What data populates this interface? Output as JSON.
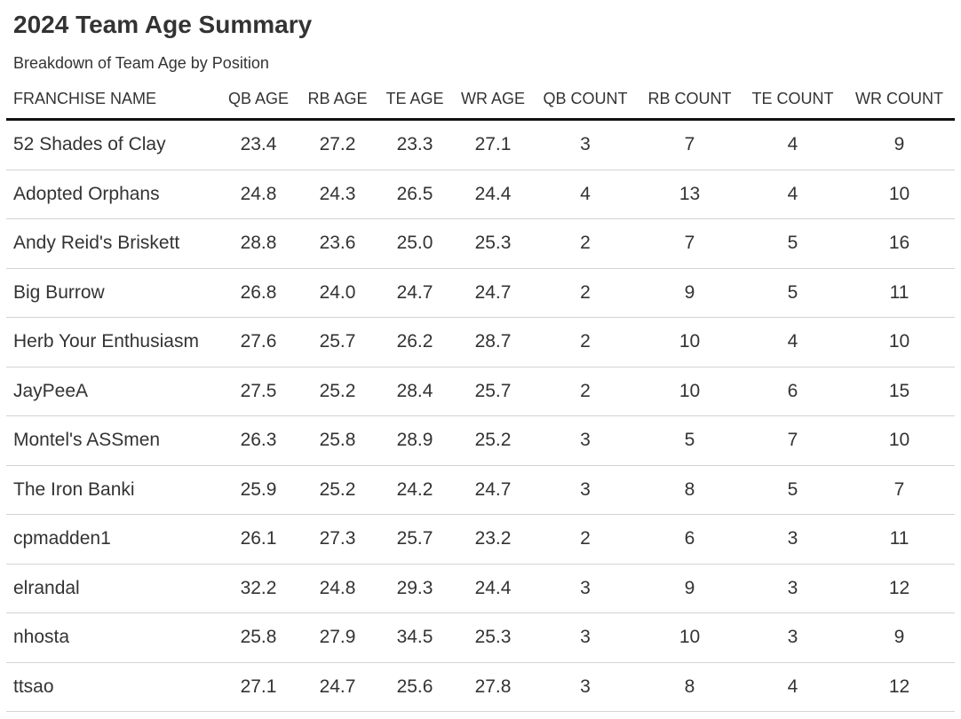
{
  "chart_data": {
    "type": "table",
    "title": "2024 Team Age Summary",
    "subtitle": "Breakdown of Team Age by Position",
    "columns": [
      "FRANCHISE NAME",
      "QB AGE",
      "RB AGE",
      "TE AGE",
      "WR AGE",
      "QB COUNT",
      "RB COUNT",
      "TE COUNT",
      "WR COUNT"
    ],
    "rows": [
      [
        "52 Shades of Clay",
        "23.4",
        "27.2",
        "23.3",
        "27.1",
        "3",
        "7",
        "4",
        "9"
      ],
      [
        "Adopted Orphans",
        "24.8",
        "24.3",
        "26.5",
        "24.4",
        "4",
        "13",
        "4",
        "10"
      ],
      [
        "Andy Reid's Briskett",
        "28.8",
        "23.6",
        "25.0",
        "25.3",
        "2",
        "7",
        "5",
        "16"
      ],
      [
        "Big Burrow",
        "26.8",
        "24.0",
        "24.7",
        "24.7",
        "2",
        "9",
        "5",
        "11"
      ],
      [
        "Herb Your Enthusiasm",
        "27.6",
        "25.7",
        "26.2",
        "28.7",
        "2",
        "10",
        "4",
        "10"
      ],
      [
        "JayPeeA",
        "27.5",
        "25.2",
        "28.4",
        "25.7",
        "2",
        "10",
        "6",
        "15"
      ],
      [
        "Montel's ASSmen",
        "26.3",
        "25.8",
        "28.9",
        "25.2",
        "3",
        "5",
        "7",
        "10"
      ],
      [
        "The Iron Banki",
        "25.9",
        "25.2",
        "24.2",
        "24.7",
        "3",
        "8",
        "5",
        "7"
      ],
      [
        "cpmadden1",
        "26.1",
        "27.3",
        "25.7",
        "23.2",
        "2",
        "6",
        "3",
        "11"
      ],
      [
        "elrandal",
        "32.2",
        "24.8",
        "29.3",
        "24.4",
        "3",
        "9",
        "3",
        "12"
      ],
      [
        "nhosta",
        "25.8",
        "27.9",
        "34.5",
        "25.3",
        "3",
        "10",
        "3",
        "9"
      ],
      [
        "ttsao",
        "27.1",
        "24.7",
        "25.6",
        "27.8",
        "3",
        "8",
        "4",
        "12"
      ]
    ]
  }
}
